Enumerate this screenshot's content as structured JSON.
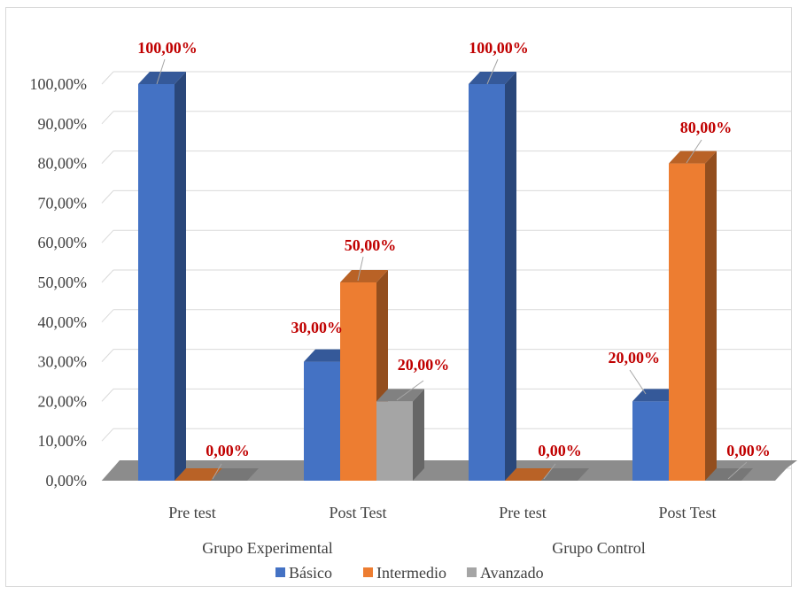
{
  "chart_data": {
    "type": "bar",
    "style": "3d-clustered-column",
    "groups": [
      {
        "label": "Grupo Experimental",
        "categories": [
          "Pre test",
          "Post Test"
        ]
      },
      {
        "label": "Grupo Control",
        "categories": [
          "Pre test",
          "Post Test"
        ]
      }
    ],
    "categories": [
      "Pre test",
      "Post Test",
      "Pre test",
      "Post Test"
    ],
    "series": [
      {
        "name": "Básico",
        "color": "#4472C4",
        "values": [
          100,
          30,
          100,
          20
        ]
      },
      {
        "name": "Intermedio",
        "color": "#ED7D31",
        "values": [
          0,
          50,
          0,
          80
        ]
      },
      {
        "name": "Avanzado",
        "color": "#A5A5A5",
        "values": [
          0,
          20,
          0,
          0
        ]
      }
    ],
    "data_labels": [
      [
        "100,00%",
        "30,00%",
        "100,00%",
        "20,00%"
      ],
      [
        "0,00%",
        "50,00%",
        "0,00%",
        "80,00%"
      ],
      [
        null,
        "20,00%",
        null,
        "0,00%"
      ]
    ],
    "y_ticks": [
      "0,00%",
      "10,00%",
      "20,00%",
      "30,00%",
      "40,00%",
      "50,00%",
      "60,00%",
      "70,00%",
      "80,00%",
      "90,00%",
      "100,00%"
    ],
    "ylim": [
      0,
      100
    ],
    "grid": true,
    "legend_position": "bottom",
    "data_label_color": "#C00000",
    "floor_color": "#8C8C8C"
  }
}
